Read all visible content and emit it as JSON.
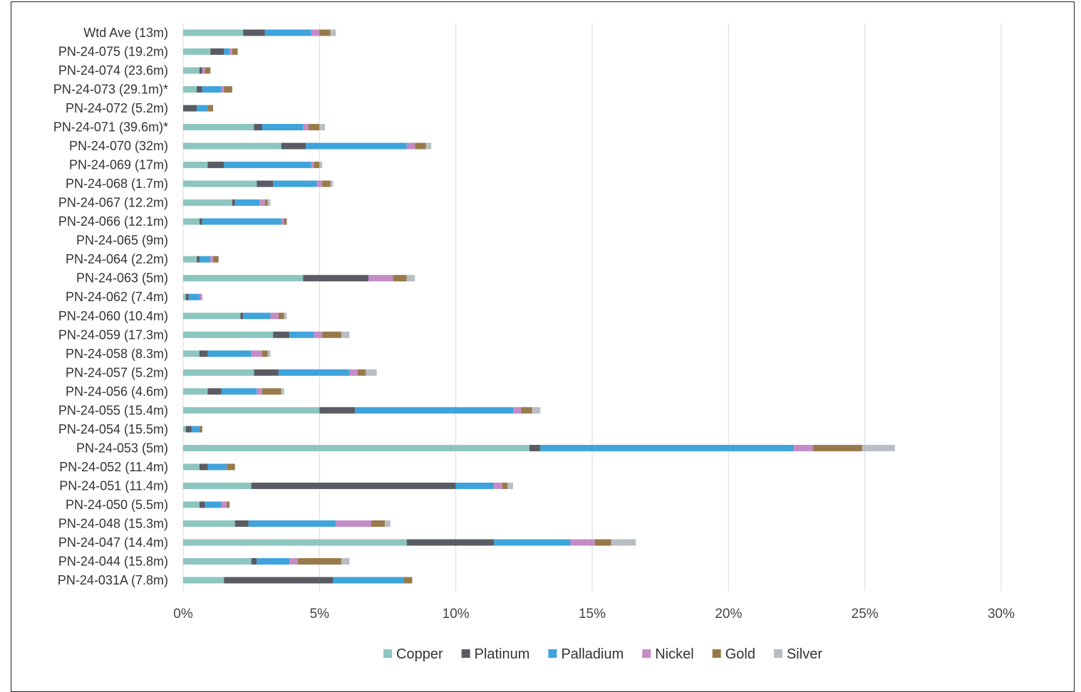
{
  "chart_data": {
    "type": "bar",
    "orientation": "horizontal",
    "stacked": true,
    "title": "",
    "xlabel": "",
    "ylabel": "",
    "xlim": [
      0,
      0.3
    ],
    "x_ticks": [
      "0%",
      "5%",
      "10%",
      "15%",
      "20%",
      "25%",
      "30%"
    ],
    "grid": "vertical",
    "legend_position": "bottom",
    "categories": [
      "Wtd Ave (13m)",
      "PN-24-075 (19.2m)",
      "PN-24-074 (23.6m)",
      "PN-24-073 (29.1m)*",
      "PN-24-072 (5.2m)",
      "PN-24-071 (39.6m)*",
      "PN-24-070 (32m)",
      "PN-24-069 (17m)",
      "PN-24-068 (1.7m)",
      "PN-24-067 (12.2m)",
      "PN-24-066 (12.1m)",
      "PN-24-065 (9m)",
      "PN-24-064 (2.2m)",
      "PN-24-063 (5m)",
      "PN-24-062 (7.4m)",
      "PN-24-060 (10.4m)",
      "PN-24-059 (17.3m)",
      "PN-24-058 (8.3m)",
      "PN-24-057 (5.2m)",
      "PN-24-056 (4.6m)",
      "PN-24-055 (15.4m)",
      "PN-24-054 (15.5m)",
      "PN-24-053 (5m)",
      "PN-24-052 (11.4m)",
      "PN-24-051 (11.4m)",
      "PN-24-050 (5.5m)",
      "PN-24-048 (15.3m)",
      "PN-24-047 (14.4m)",
      "PN-24-044 (15.8m)",
      "PN-24-031A (7.8m)"
    ],
    "series": [
      {
        "name": "Copper",
        "color": "#8dc5bf",
        "values": [
          0.022,
          0.01,
          0.006,
          0.005,
          0.0,
          0.026,
          0.036,
          0.009,
          0.027,
          0.018,
          0.006,
          0,
          0.005,
          0.044,
          0.001,
          0.021,
          0.033,
          0.006,
          0.026,
          0.009,
          0.05,
          0.001,
          0.127,
          0.006,
          0.025,
          0.006,
          0.019,
          0.082,
          0.025,
          0.015
        ]
      },
      {
        "name": "Platinum",
        "color": "#595c63",
        "values": [
          0.008,
          0.005,
          0.001,
          0.002,
          0.005,
          0.003,
          0.009,
          0.006,
          0.006,
          0.001,
          0.001,
          0,
          0.001,
          0.024,
          0.001,
          0.001,
          0.006,
          0.003,
          0.009,
          0.005,
          0.013,
          0.002,
          0.004,
          0.003,
          0.075,
          0.002,
          0.005,
          0.032,
          0.002,
          0.04
        ]
      },
      {
        "name": "Palladium",
        "color": "#3fa4dc",
        "values": [
          0.017,
          0.002,
          0.0,
          0.007,
          0.004,
          0.015,
          0.037,
          0.032,
          0.016,
          0.009,
          0.029,
          0,
          0.004,
          0.0,
          0.004,
          0.01,
          0.009,
          0.016,
          0.026,
          0.013,
          0.058,
          0.003,
          0.093,
          0.007,
          0.014,
          0.006,
          0.032,
          0.028,
          0.012,
          0.026
        ]
      },
      {
        "name": "Nickel",
        "color": "#c48cc6",
        "values": [
          0.003,
          0.001,
          0.001,
          0.001,
          0.0,
          0.002,
          0.003,
          0.001,
          0.002,
          0.002,
          0.001,
          0,
          0.001,
          0.009,
          0.001,
          0.003,
          0.003,
          0.004,
          0.003,
          0.002,
          0.003,
          0.0,
          0.007,
          0.0,
          0.003,
          0.002,
          0.013,
          0.009,
          0.003,
          0.0
        ]
      },
      {
        "name": "Gold",
        "color": "#987a4a",
        "values": [
          0.004,
          0.002,
          0.002,
          0.003,
          0.002,
          0.004,
          0.004,
          0.002,
          0.003,
          0.001,
          0.001,
          0,
          0.002,
          0.005,
          0.0,
          0.002,
          0.007,
          0.002,
          0.003,
          0.007,
          0.004,
          0.001,
          0.018,
          0.003,
          0.002,
          0.001,
          0.005,
          0.006,
          0.016,
          0.003
        ]
      },
      {
        "name": "Silver",
        "color": "#b9bec3",
        "values": [
          0.002,
          0.0,
          0.0,
          0.0,
          0.0,
          0.002,
          0.002,
          0.001,
          0.001,
          0.001,
          0.0,
          0,
          0.0,
          0.003,
          0.0,
          0.001,
          0.003,
          0.001,
          0.004,
          0.001,
          0.003,
          0.0,
          0.012,
          0.0,
          0.002,
          0.0,
          0.002,
          0.009,
          0.003,
          0.0
        ]
      }
    ]
  }
}
